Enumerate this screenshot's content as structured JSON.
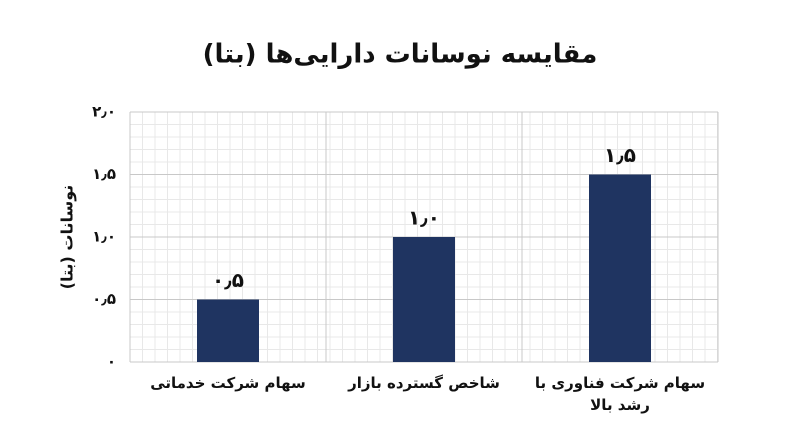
{
  "chart_data": {
    "type": "bar",
    "title": "مقایسه نوسانات دارایی‌ها (بتا)",
    "y_label": "نوسانات (بتا)",
    "categories": [
      "سهام شرکت خدماتی",
      "شاخص گسترده بازار",
      "سهام شرکت فناوری با رشد بالا"
    ],
    "values": [
      0.5,
      1.0,
      1.5
    ],
    "value_labels": [
      "۰٫۵",
      "۱٫۰",
      "۱٫۵"
    ],
    "color": "#1f3461",
    "ylim": [
      0,
      2
    ],
    "yticks": [
      {
        "value": 0,
        "label": "۰"
      },
      {
        "value": 0.5,
        "label": "۰٫۵"
      },
      {
        "value": 1,
        "label": "۱٫۰"
      },
      {
        "value": 1.5,
        "label": "۱٫۵"
      },
      {
        "value": 2,
        "label": "۲٫۰"
      }
    ],
    "grid": true
  }
}
